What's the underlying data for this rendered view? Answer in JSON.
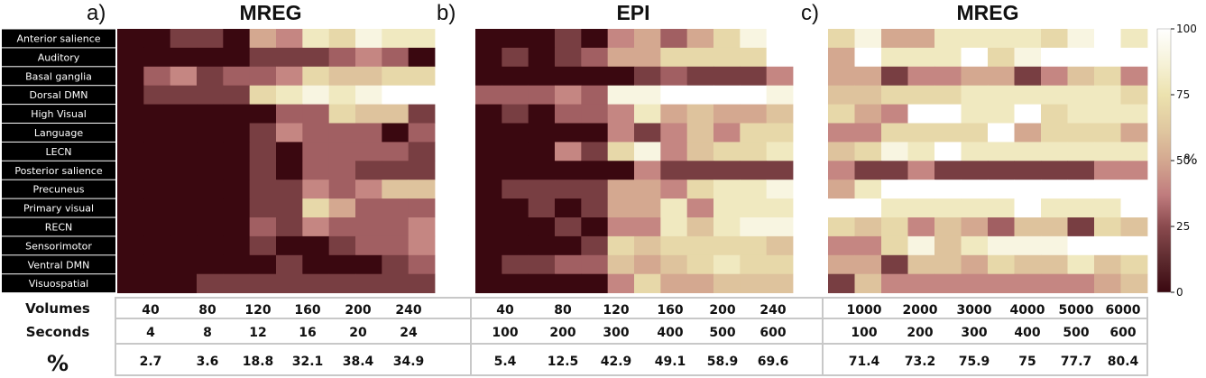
{
  "panels": [
    {
      "letter": "a)",
      "title": "MREG"
    },
    {
      "letter": "b)",
      "title": "EPI"
    },
    {
      "letter": "c)",
      "title": "MREG"
    }
  ],
  "table": {
    "row_labels": [
      "Volumes",
      "Seconds",
      "%"
    ],
    "groups": [
      {
        "volumes": [
          "40",
          "80",
          "120",
          "160",
          "200",
          "240"
        ],
        "seconds": [
          "4",
          "8",
          "12",
          "16",
          "20",
          "24"
        ],
        "percent": [
          "2.7",
          "3.6",
          "18.8",
          "32.1",
          "38.4",
          "34.9"
        ]
      },
      {
        "volumes": [
          "40",
          "80",
          "120",
          "160",
          "200",
          "240"
        ],
        "seconds": [
          "100",
          "200",
          "300",
          "400",
          "500",
          "600"
        ],
        "percent": [
          "5.4",
          "12.5",
          "42.9",
          "49.1",
          "58.9",
          "69.6"
        ]
      },
      {
        "volumes": [
          "1000",
          "2000",
          "3000",
          "4000",
          "5000",
          "6000"
        ],
        "seconds": [
          "100",
          "200",
          "300",
          "400",
          "500",
          "600"
        ],
        "percent": [
          "71.4",
          "73.2",
          "75.9",
          "75",
          "77.7",
          "80.4"
        ]
      }
    ]
  },
  "chart_data": {
    "type": "heatmap",
    "rows": [
      "Anterior salience",
      "Auditory",
      "Basal ganglia",
      "Dorsal DMN",
      "High Visual",
      "Language",
      "LECN",
      "Posterior salience",
      "Precuneus",
      "Primary visual",
      "RECN",
      "Sensorimotor",
      "Ventral DMN",
      "Visuospatial"
    ],
    "columns_per_panel": 12,
    "colorbar": {
      "min": 0,
      "max": 100,
      "ticks": [
        "0",
        "25",
        "50",
        "75",
        "100"
      ],
      "label": "%"
    },
    "colormap": [
      {
        "v": 0,
        "color": "#3a0810"
      },
      {
        "v": 12,
        "color": "#5c2a2e"
      },
      {
        "v": 25,
        "color": "#8a4a4e"
      },
      {
        "v": 37,
        "color": "#c07c7e"
      },
      {
        "v": 50,
        "color": "#d4a890"
      },
      {
        "v": 62,
        "color": "#e0c8a0"
      },
      {
        "v": 75,
        "color": "#ece2ae"
      },
      {
        "v": 87,
        "color": "#f6f2d8"
      },
      {
        "v": 100,
        "color": "#ffffff"
      }
    ],
    "panels": [
      {
        "name": "a",
        "values": [
          [
            0,
            0,
            20,
            20,
            0,
            50,
            40,
            80,
            70,
            90,
            80,
            80
          ],
          [
            0,
            0,
            0,
            0,
            0,
            20,
            20,
            20,
            30,
            40,
            30,
            0
          ],
          [
            0,
            30,
            40,
            20,
            30,
            30,
            40,
            70,
            60,
            60,
            70,
            70
          ],
          [
            0,
            20,
            20,
            20,
            20,
            70,
            80,
            90,
            80,
            90,
            100,
            100
          ],
          [
            0,
            0,
            0,
            0,
            0,
            0,
            30,
            30,
            70,
            60,
            60,
            20
          ],
          [
            0,
            0,
            0,
            0,
            0,
            20,
            40,
            30,
            30,
            30,
            0,
            30
          ],
          [
            0,
            0,
            0,
            0,
            0,
            20,
            0,
            30,
            30,
            30,
            30,
            20
          ],
          [
            0,
            0,
            0,
            0,
            0,
            20,
            0,
            30,
            30,
            20,
            20,
            20
          ],
          [
            0,
            0,
            0,
            0,
            0,
            20,
            20,
            40,
            30,
            40,
            60,
            60
          ],
          [
            0,
            0,
            0,
            0,
            0,
            20,
            20,
            70,
            50,
            30,
            30,
            30
          ],
          [
            0,
            0,
            0,
            0,
            0,
            30,
            20,
            40,
            30,
            30,
            30,
            40
          ],
          [
            0,
            0,
            0,
            0,
            0,
            20,
            0,
            0,
            20,
            30,
            30,
            40
          ],
          [
            0,
            0,
            0,
            0,
            0,
            0,
            20,
            0,
            0,
            0,
            20,
            30
          ],
          [
            0,
            0,
            0,
            20,
            20,
            20,
            20,
            20,
            20,
            20,
            20,
            20
          ]
        ]
      },
      {
        "name": "b",
        "values": [
          [
            0,
            0,
            0,
            20,
            0,
            40,
            50,
            30,
            50,
            70,
            90,
            100
          ],
          [
            0,
            20,
            0,
            20,
            30,
            50,
            50,
            70,
            70,
            70,
            70,
            100
          ],
          [
            0,
            0,
            0,
            0,
            0,
            0,
            20,
            30,
            20,
            20,
            20,
            40
          ],
          [
            30,
            30,
            30,
            40,
            30,
            90,
            90,
            100,
            100,
            100,
            100,
            90
          ],
          [
            0,
            20,
            0,
            30,
            30,
            40,
            80,
            50,
            60,
            50,
            50,
            60
          ],
          [
            0,
            0,
            0,
            0,
            0,
            40,
            20,
            40,
            60,
            40,
            70,
            70
          ],
          [
            0,
            0,
            0,
            40,
            20,
            70,
            90,
            40,
            60,
            70,
            70,
            80
          ],
          [
            0,
            0,
            0,
            0,
            0,
            0,
            40,
            20,
            20,
            20,
            20,
            20
          ],
          [
            0,
            20,
            20,
            20,
            20,
            50,
            50,
            40,
            70,
            80,
            80,
            90
          ],
          [
            0,
            0,
            20,
            0,
            20,
            50,
            50,
            80,
            40,
            80,
            80,
            80
          ],
          [
            0,
            0,
            0,
            20,
            0,
            40,
            40,
            80,
            60,
            80,
            90,
            90
          ],
          [
            0,
            0,
            0,
            0,
            20,
            70,
            60,
            70,
            70,
            70,
            70,
            60
          ],
          [
            0,
            20,
            20,
            30,
            30,
            60,
            50,
            60,
            70,
            80,
            70,
            70
          ],
          [
            0,
            0,
            0,
            0,
            0,
            40,
            70,
            50,
            50,
            60,
            60,
            60
          ]
        ]
      },
      {
        "name": "c",
        "values": [
          [
            70,
            90,
            50,
            50,
            80,
            80,
            80,
            80,
            70,
            90,
            100,
            80
          ],
          [
            50,
            100,
            80,
            80,
            80,
            100,
            70,
            90,
            100,
            100,
            100,
            100
          ],
          [
            50,
            50,
            20,
            40,
            40,
            50,
            50,
            20,
            40,
            60,
            70,
            40
          ],
          [
            60,
            60,
            70,
            70,
            70,
            80,
            80,
            80,
            80,
            80,
            80,
            70
          ],
          [
            70,
            50,
            40,
            100,
            100,
            80,
            80,
            100,
            70,
            80,
            80,
            80
          ],
          [
            40,
            40,
            70,
            70,
            70,
            70,
            100,
            50,
            70,
            70,
            70,
            50
          ],
          [
            60,
            70,
            90,
            80,
            100,
            80,
            80,
            80,
            80,
            80,
            80,
            80
          ],
          [
            40,
            20,
            20,
            40,
            20,
            20,
            20,
            20,
            20,
            20,
            40,
            40
          ],
          [
            50,
            80,
            100,
            100,
            100,
            100,
            100,
            100,
            100,
            100,
            100,
            100
          ],
          [
            100,
            100,
            80,
            80,
            80,
            80,
            80,
            100,
            80,
            80,
            80,
            100
          ],
          [
            70,
            60,
            70,
            40,
            60,
            50,
            30,
            60,
            60,
            20,
            70,
            60
          ],
          [
            40,
            40,
            70,
            90,
            60,
            80,
            90,
            90,
            90,
            100,
            100,
            100
          ],
          [
            50,
            50,
            20,
            60,
            60,
            50,
            70,
            60,
            60,
            80,
            60,
            70
          ],
          [
            20,
            60,
            40,
            40,
            40,
            40,
            40,
            40,
            40,
            40,
            50,
            60
          ]
        ]
      }
    ]
  }
}
